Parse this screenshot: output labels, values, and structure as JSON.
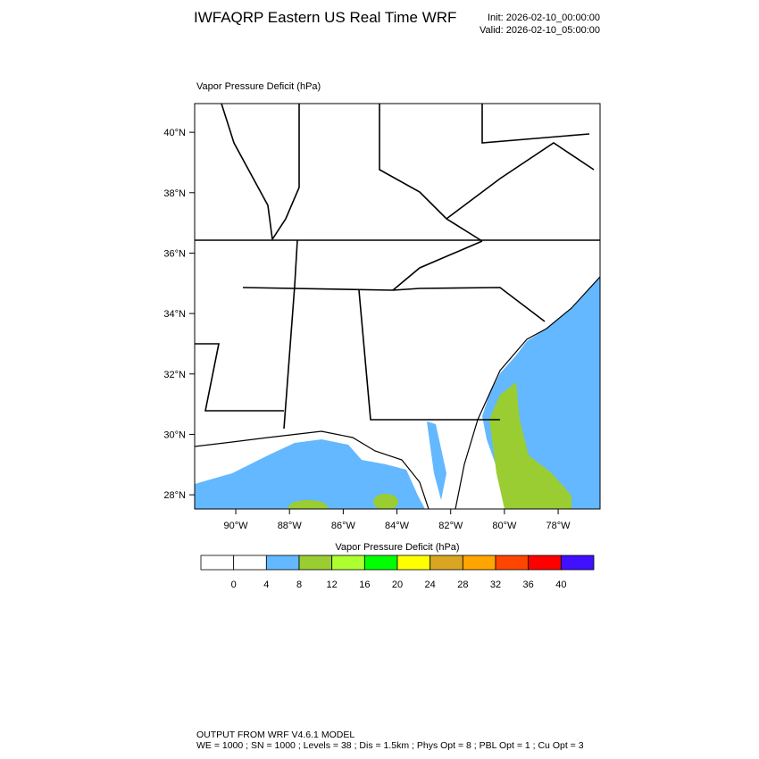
{
  "header": {
    "title": "IWFAQRP Eastern US Real Time WRF",
    "init": "Init: 2026-02-10_00:00:00",
    "valid": "Valid: 2026-02-10_05:00:00"
  },
  "map": {
    "field_title": "Vapor Pressure Deficit   (hPa)",
    "xlim": [
      -91.53,
      -76.44
    ],
    "ylim": [
      27.53,
      40.95
    ],
    "xticks": [
      {
        "value": -90,
        "label": "90°W"
      },
      {
        "value": -88,
        "label": "88°W"
      },
      {
        "value": -86,
        "label": "86°W"
      },
      {
        "value": -84,
        "label": "84°W"
      },
      {
        "value": -82,
        "label": "82°W"
      },
      {
        "value": -80,
        "label": "80°W"
      },
      {
        "value": -78,
        "label": "78°W"
      }
    ],
    "yticks": [
      {
        "value": 28,
        "label": "28°N"
      },
      {
        "value": 30,
        "label": "30°N"
      },
      {
        "value": 32,
        "label": "32°N"
      },
      {
        "value": 34,
        "label": "34°N"
      },
      {
        "value": 36,
        "label": "36°N"
      },
      {
        "value": 38,
        "label": "38°N"
      },
      {
        "value": 40,
        "label": "40°N"
      }
    ]
  },
  "colorbar": {
    "title": "Vapor Pressure Deficit  (hPa)",
    "colors": [
      "#ffffff",
      "#ffffff",
      "#63b8ff",
      "#9acd32",
      "#adff2f",
      "#00ff00",
      "#ffff00",
      "#daa520",
      "#ffa500",
      "#ff4500",
      "#ff0000",
      "#4010ff"
    ],
    "ticks": [
      0,
      4,
      8,
      12,
      16,
      20,
      24,
      28,
      32,
      36,
      40
    ]
  },
  "footer": {
    "line1": "OUTPUT FROM WRF V4.6.1 MODEL",
    "line2": "WE = 1000 ; SN = 1000 ; Levels = 38 ; Dis = 1.5km ; Phys Opt = 8 ; PBL Opt = 1 ; Cu Opt = 3"
  }
}
